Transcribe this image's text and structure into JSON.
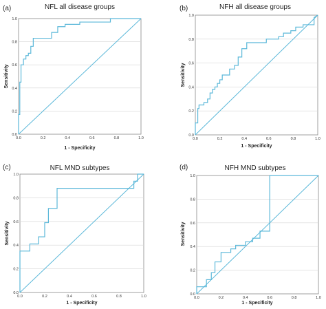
{
  "chart_data": [
    {
      "type": "line",
      "panel_label": "(a)",
      "title": "NFL all disease groups",
      "xlabel": "1 - Specificity",
      "ylabel": "Sensitivity",
      "xlim": [
        0,
        1
      ],
      "ylim": [
        0,
        1
      ],
      "x_ticks": [
        "0.0",
        "0.2",
        "0.4",
        "0.6",
        "0.8",
        "1.0"
      ],
      "y_ticks": [
        "0.0",
        "0.2",
        "0.4",
        "0.6",
        "0.8",
        "1.0"
      ],
      "grid": "horizontal",
      "reference_line": [
        [
          0,
          0
        ],
        [
          1,
          1
        ]
      ],
      "roc_curve": [
        [
          0,
          0
        ],
        [
          0,
          0.17
        ],
        [
          0.01,
          0.17
        ],
        [
          0.01,
          0.45
        ],
        [
          0.02,
          0.45
        ],
        [
          0.02,
          0.6
        ],
        [
          0.04,
          0.6
        ],
        [
          0.04,
          0.65
        ],
        [
          0.06,
          0.65
        ],
        [
          0.06,
          0.68
        ],
        [
          0.08,
          0.68
        ],
        [
          0.08,
          0.7
        ],
        [
          0.1,
          0.7
        ],
        [
          0.1,
          0.76
        ],
        [
          0.12,
          0.76
        ],
        [
          0.12,
          0.83
        ],
        [
          0.27,
          0.83
        ],
        [
          0.27,
          0.88
        ],
        [
          0.32,
          0.88
        ],
        [
          0.32,
          0.93
        ],
        [
          0.38,
          0.93
        ],
        [
          0.38,
          0.95
        ],
        [
          0.5,
          0.95
        ],
        [
          0.5,
          0.97
        ],
        [
          0.75,
          0.97
        ],
        [
          0.75,
          1
        ],
        [
          1,
          1
        ]
      ]
    },
    {
      "type": "line",
      "panel_label": "(b)",
      "title": "NFH all disease groups",
      "xlabel": "1 - Specificity",
      "ylabel": "Sensitivity",
      "xlim": [
        0,
        1
      ],
      "ylim": [
        0,
        1
      ],
      "x_ticks": [
        "0.0",
        "0.2",
        "0.4",
        "0.6",
        "0.8",
        "1.0"
      ],
      "y_ticks": [
        "0.0",
        "0.2",
        "0.4",
        "0.6",
        "0.8",
        "1.0"
      ],
      "grid": "horizontal",
      "reference_line": [
        [
          0,
          0
        ],
        [
          1,
          1
        ]
      ],
      "roc_curve": [
        [
          0,
          0
        ],
        [
          0,
          0.1
        ],
        [
          0.02,
          0.1
        ],
        [
          0.02,
          0.22
        ],
        [
          0.03,
          0.22
        ],
        [
          0.03,
          0.25
        ],
        [
          0.07,
          0.25
        ],
        [
          0.07,
          0.27
        ],
        [
          0.1,
          0.27
        ],
        [
          0.1,
          0.3
        ],
        [
          0.12,
          0.3
        ],
        [
          0.12,
          0.35
        ],
        [
          0.14,
          0.35
        ],
        [
          0.14,
          0.38
        ],
        [
          0.16,
          0.38
        ],
        [
          0.16,
          0.4
        ],
        [
          0.18,
          0.4
        ],
        [
          0.18,
          0.43
        ],
        [
          0.2,
          0.43
        ],
        [
          0.2,
          0.46
        ],
        [
          0.22,
          0.46
        ],
        [
          0.22,
          0.5
        ],
        [
          0.28,
          0.5
        ],
        [
          0.28,
          0.55
        ],
        [
          0.32,
          0.55
        ],
        [
          0.32,
          0.58
        ],
        [
          0.35,
          0.58
        ],
        [
          0.35,
          0.65
        ],
        [
          0.38,
          0.65
        ],
        [
          0.38,
          0.72
        ],
        [
          0.42,
          0.72
        ],
        [
          0.42,
          0.77
        ],
        [
          0.58,
          0.77
        ],
        [
          0.58,
          0.8
        ],
        [
          0.68,
          0.8
        ],
        [
          0.68,
          0.82
        ],
        [
          0.72,
          0.82
        ],
        [
          0.72,
          0.85
        ],
        [
          0.78,
          0.85
        ],
        [
          0.78,
          0.87
        ],
        [
          0.82,
          0.87
        ],
        [
          0.82,
          0.9
        ],
        [
          0.88,
          0.9
        ],
        [
          0.88,
          0.92
        ],
        [
          0.97,
          0.92
        ],
        [
          0.97,
          0.98
        ],
        [
          1,
          1
        ]
      ]
    },
    {
      "type": "line",
      "panel_label": "(c)",
      "title": "NFL MND subtypes",
      "xlabel": "1 - Specificity",
      "ylabel": "Sensitivity",
      "xlim": [
        0,
        1
      ],
      "ylim": [
        0,
        1
      ],
      "x_ticks": [
        "0.0",
        "0.2",
        "0.4",
        "0.6",
        "0.8",
        "1.0"
      ],
      "y_ticks": [
        "0.0",
        "0.2",
        "0.4",
        "0.6",
        "0.8",
        "1.0"
      ],
      "grid": "horizontal",
      "reference_line": [
        [
          0,
          0
        ],
        [
          1,
          1
        ]
      ],
      "roc_curve": [
        [
          0,
          0
        ],
        [
          0,
          0.35
        ],
        [
          0.08,
          0.35
        ],
        [
          0.08,
          0.41
        ],
        [
          0.15,
          0.41
        ],
        [
          0.15,
          0.47
        ],
        [
          0.2,
          0.47
        ],
        [
          0.2,
          0.59
        ],
        [
          0.23,
          0.59
        ],
        [
          0.23,
          0.71
        ],
        [
          0.3,
          0.71
        ],
        [
          0.3,
          0.88
        ],
        [
          0.92,
          0.88
        ],
        [
          0.92,
          0.94
        ],
        [
          0.95,
          0.94
        ],
        [
          0.95,
          1
        ],
        [
          1,
          1
        ]
      ]
    },
    {
      "type": "line",
      "panel_label": "(d)",
      "title": "NFH MND subtypes",
      "xlabel": "1 - Specificity",
      "ylabel": "Sensitivity",
      "xlim": [
        0,
        1
      ],
      "ylim": [
        0,
        1
      ],
      "x_ticks": [
        "0.0",
        "0.2",
        "0.4",
        "0.6",
        "0.8",
        "1.0"
      ],
      "y_ticks": [
        "0.0",
        "0.2",
        "0.4",
        "0.6",
        "0.8",
        "1.0"
      ],
      "grid": "horizontal",
      "reference_line": [
        [
          0,
          0
        ],
        [
          1,
          1
        ]
      ],
      "roc_curve": [
        [
          0,
          0
        ],
        [
          0,
          0.06
        ],
        [
          0.08,
          0.06
        ],
        [
          0.08,
          0.12
        ],
        [
          0.12,
          0.12
        ],
        [
          0.12,
          0.18
        ],
        [
          0.15,
          0.18
        ],
        [
          0.15,
          0.27
        ],
        [
          0.2,
          0.27
        ],
        [
          0.2,
          0.35
        ],
        [
          0.28,
          0.35
        ],
        [
          0.28,
          0.38
        ],
        [
          0.32,
          0.38
        ],
        [
          0.32,
          0.41
        ],
        [
          0.4,
          0.41
        ],
        [
          0.4,
          0.44
        ],
        [
          0.46,
          0.44
        ],
        [
          0.46,
          0.47
        ],
        [
          0.52,
          0.47
        ],
        [
          0.52,
          0.53
        ],
        [
          0.6,
          0.53
        ],
        [
          0.6,
          1
        ],
        [
          1,
          1
        ]
      ]
    }
  ]
}
